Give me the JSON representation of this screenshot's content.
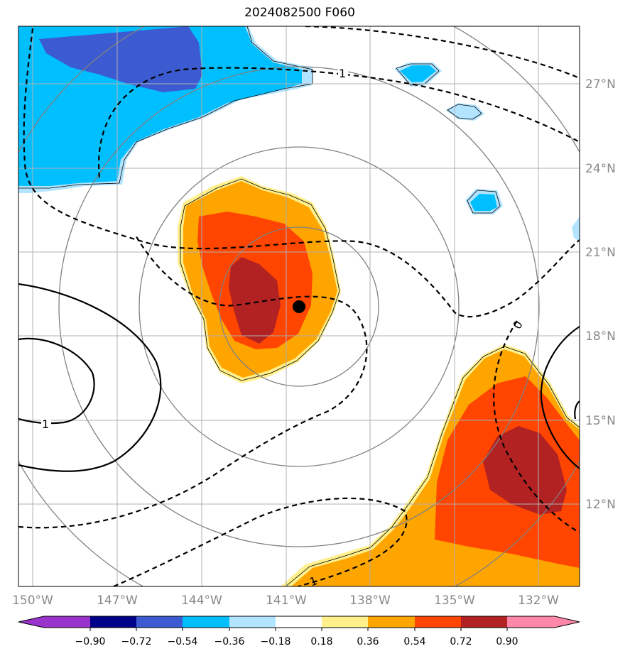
{
  "title": "2024082500 F060",
  "map": {
    "lon_ticks": [
      "150°W",
      "147°W",
      "144°W",
      "141°W",
      "138°W",
      "135°W",
      "132°W"
    ],
    "lat_ticks": [
      "27°N",
      "24°N",
      "21°N",
      "18°N",
      "15°N",
      "12°N"
    ],
    "contour_labels": [
      "1",
      "0",
      "1",
      "1"
    ],
    "storm_center_icon": "filled-circle"
  },
  "colorbar": {
    "ticks": [
      "−0.90",
      "−0.72",
      "−0.54",
      "−0.36",
      "−0.18",
      "0.18",
      "0.36",
      "0.54",
      "0.72",
      "0.90"
    ],
    "colors": [
      "#9933cc",
      "#000088",
      "#3d5bd1",
      "#00bfff",
      "#b2e4ff",
      "#ffffff",
      "#fff08c",
      "#ffa500",
      "#ff4500",
      "#b22222",
      "#ff88aa"
    ]
  }
}
